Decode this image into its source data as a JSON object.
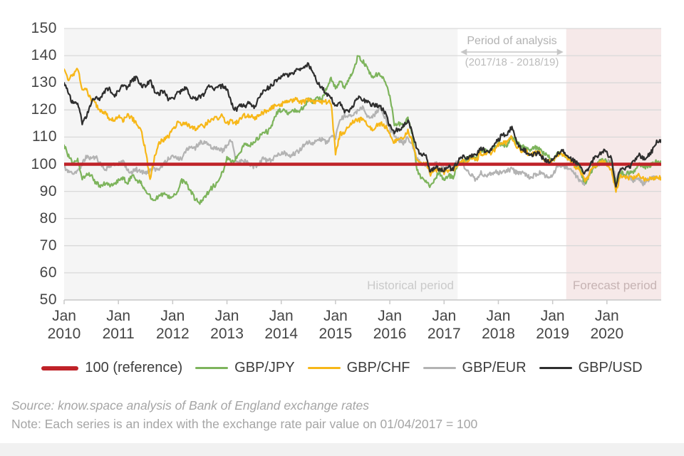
{
  "chart_data": {
    "type": "line",
    "title": "",
    "xlabel": "",
    "ylabel": "",
    "y_axis": {
      "min": 50,
      "max": 150,
      "tick_step": 10,
      "ticks": [
        150,
        140,
        130,
        120,
        110,
        100,
        90,
        80,
        70,
        60,
        50
      ]
    },
    "x_axis": {
      "month_label": "Jan",
      "years": [
        "2010",
        "2011",
        "2012",
        "2013",
        "2014",
        "2015",
        "2016",
        "2017",
        "2018",
        "2019",
        "2020"
      ],
      "months_per_year": 12
    },
    "grid": "horizontal",
    "legend_position": "bottom",
    "series": [
      {
        "name": "100 (reference)",
        "color": "#bf2228",
        "type": "constant",
        "value": 100
      },
      {
        "name": "GBP/JPY",
        "color": "#7db45c",
        "type": "noisy-line",
        "values": [
          107,
          103,
          100,
          102,
          95,
          96,
          96,
          93,
          92,
          93,
          92,
          93,
          94,
          95,
          93,
          96,
          94,
          93,
          90,
          88,
          87,
          88,
          89,
          88,
          88,
          90,
          94,
          93,
          90,
          87,
          86,
          88,
          90,
          92,
          93,
          97,
          102,
          101,
          102,
          104,
          108,
          107,
          108,
          110,
          112,
          112,
          115,
          119,
          120,
          119,
          119,
          120,
          120,
          121,
          124,
          123,
          124,
          124,
          128,
          132,
          128,
          131,
          128,
          131,
          135,
          140,
          138,
          136,
          132,
          133,
          133,
          131,
          125,
          115,
          115,
          114,
          117,
          111,
          98,
          95,
          94,
          92,
          95,
          97,
          94,
          96,
          95,
          100,
          101,
          102,
          103,
          102,
          105,
          105,
          105,
          106,
          108,
          107,
          107,
          110,
          108,
          107,
          106,
          105,
          106,
          106,
          104,
          103,
          101,
          104,
          104,
          103,
          101,
          100,
          99,
          93,
          95,
          99,
          100,
          102,
          101,
          100,
          93,
          97,
          96,
          97,
          97,
          100,
          99,
          99,
          100,
          101,
          101
        ]
      },
      {
        "name": "GBP/CHF",
        "color": "#f7b718",
        "type": "noisy-line",
        "values": [
          135,
          131,
          133,
          135,
          128,
          127,
          124,
          122,
          120,
          119,
          117,
          116,
          118,
          116,
          118,
          117,
          115,
          113,
          105,
          94,
          103,
          108,
          109,
          110,
          113,
          115,
          115,
          115,
          114,
          113,
          114,
          114,
          116,
          117,
          117,
          118,
          115,
          116,
          115,
          117,
          118,
          118,
          117,
          118,
          119,
          120,
          121,
          122,
          122,
          123,
          123,
          124,
          123,
          123,
          124,
          123,
          123,
          123,
          123,
          123,
          104,
          111,
          112,
          114,
          116,
          116,
          117,
          115,
          113,
          114,
          115,
          114,
          111,
          108,
          110,
          110,
          112,
          108,
          101,
          100,
          100,
          96,
          98,
          98,
          97,
          98,
          98,
          100,
          101,
          101,
          103,
          101,
          104,
          104,
          104,
          105,
          107,
          108,
          108,
          110,
          107,
          105,
          105,
          103,
          104,
          105,
          102,
          101,
          101,
          103,
          104,
          103,
          101,
          99,
          98,
          94,
          96,
          99,
          100,
          101,
          100,
          98,
          90,
          96,
          95,
          95,
          95,
          96,
          95,
          94,
          95,
          95,
          95
        ]
      },
      {
        "name": "GBP/EUR",
        "color": "#b3b3b3",
        "type": "noisy-line",
        "values": [
          99,
          97,
          96,
          98,
          100,
          103,
          102,
          103,
          100,
          98,
          99,
          100,
          100,
          101,
          98,
          97,
          98,
          97,
          97,
          98,
          98,
          98,
          100,
          102,
          103,
          102,
          102,
          105,
          106,
          106,
          108,
          108,
          107,
          106,
          106,
          105,
          107,
          109,
          101,
          101,
          101,
          100,
          99,
          100,
          102,
          101,
          102,
          103,
          104,
          104,
          103,
          104,
          105,
          107,
          108,
          107,
          109,
          109,
          108,
          110,
          110,
          116,
          118,
          118,
          118,
          120,
          121,
          117,
          117,
          119,
          121,
          117,
          113,
          110,
          109,
          108,
          110,
          107,
          102,
          100,
          100,
          96,
          100,
          100,
          98,
          100,
          99,
          101,
          100,
          98,
          96,
          94,
          97,
          96,
          96,
          97,
          97,
          97,
          98,
          98,
          97,
          97,
          96,
          95,
          96,
          97,
          96,
          95,
          96,
          99,
          99,
          99,
          98,
          96,
          94,
          93,
          96,
          99,
          100,
          101,
          101,
          102,
          94,
          98,
          96,
          95,
          94,
          95,
          93,
          94,
          95,
          95,
          95
        ]
      },
      {
        "name": "GBP/USD",
        "color": "#2e2e2e",
        "type": "noisy-line",
        "values": [
          130,
          126,
          122,
          123,
          115,
          118,
          123,
          125,
          124,
          127,
          128,
          125,
          127,
          129,
          128,
          131,
          132,
          129,
          129,
          131,
          127,
          126,
          127,
          124,
          124,
          126,
          127,
          128,
          125,
          124,
          125,
          126,
          129,
          128,
          128,
          129,
          128,
          122,
          120,
          122,
          121,
          123,
          121,
          124,
          127,
          128,
          129,
          131,
          132,
          133,
          133,
          134,
          135,
          136,
          137,
          134,
          130,
          128,
          126,
          125,
          121,
          123,
          119,
          120,
          122,
          125,
          124,
          123,
          122,
          122,
          121,
          119,
          114,
          112,
          113,
          114,
          116,
          112,
          105,
          104,
          103,
          97,
          99,
          98,
          98,
          99,
          98,
          101,
          103,
          102,
          103,
          103,
          106,
          105,
          105,
          107,
          109,
          111,
          111,
          114,
          108,
          106,
          105,
          103,
          104,
          104,
          102,
          101,
          102,
          104,
          105,
          104,
          102,
          101,
          99,
          97,
          98,
          102,
          103,
          105,
          104,
          102,
          92,
          99,
          98,
          99,
          101,
          104,
          102,
          103,
          105,
          108,
          109
        ]
      }
    ],
    "regions": [
      {
        "label": "Historical period",
        "start_month": 0,
        "end_month": 87,
        "fill": "#f5f5f5"
      },
      {
        "label": "",
        "start_month": 87,
        "end_month": 111,
        "fill": "#ffffff"
      },
      {
        "label": "Forecast period",
        "start_month": 111,
        "end_month": 132,
        "fill": "#f6e9e9"
      }
    ],
    "annotation": {
      "line1": "Period of analysis",
      "line2": "(2017/18 - 2018/19)",
      "from_month": 87,
      "to_month": 111
    }
  },
  "footer": {
    "source": "Source: know.space analysis of Bank of England exchange rates",
    "note": "Note: Each series is an index with the exchange rate pair value on 01/04/2017 = 100"
  }
}
